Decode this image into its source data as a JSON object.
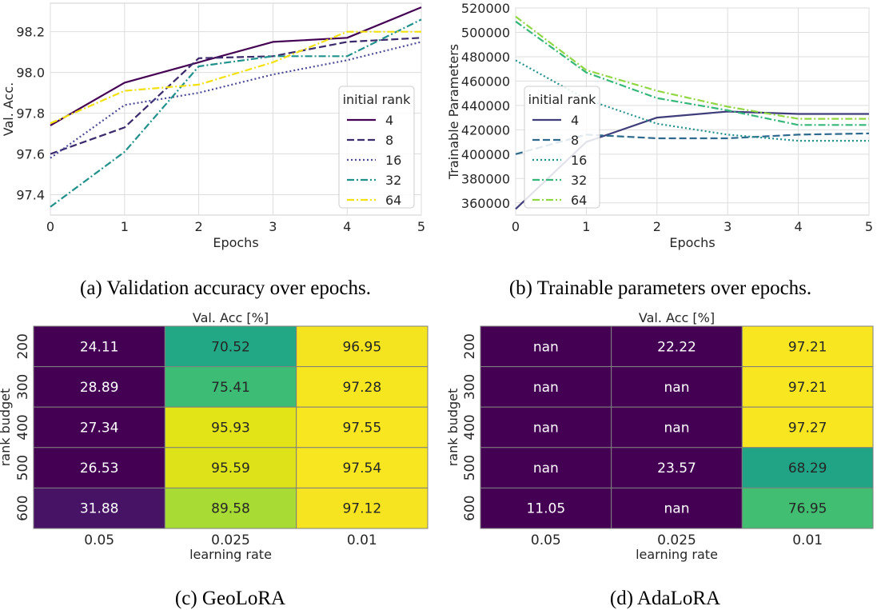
{
  "chart_data": [
    {
      "type": "line",
      "id": "a",
      "caption": "(a) Validation accuracy over epochs.",
      "xlabel": "Epochs",
      "ylabel": "Val. Acc.",
      "x": [
        0,
        1,
        2,
        3,
        4,
        5
      ],
      "xlim": [
        0,
        5
      ],
      "ylim": [
        97.3,
        98.34
      ],
      "xticks": [
        "0",
        "1",
        "2",
        "3",
        "4",
        "5"
      ],
      "yticks": [
        97.4,
        97.6,
        97.8,
        98.0,
        98.2
      ],
      "yticklabels": [
        "97.4",
        "97.6",
        "97.8",
        "98.0",
        "98.2"
      ],
      "legend_title": "initial rank",
      "legend_position": "lower-right",
      "grid": true,
      "series": [
        {
          "name": "4",
          "color": "#440154",
          "dash": "solid",
          "values": [
            97.74,
            97.95,
            98.05,
            98.15,
            98.17,
            98.32
          ]
        },
        {
          "name": "8",
          "color": "#3b2a6c",
          "dash": "dashed",
          "values": [
            97.6,
            97.73,
            98.07,
            98.08,
            98.15,
            98.17
          ]
        },
        {
          "name": "16",
          "color": "#4a4a98",
          "dash": "dotted",
          "values": [
            97.58,
            97.84,
            97.9,
            97.99,
            98.06,
            98.15
          ]
        },
        {
          "name": "32",
          "color": "#21918c",
          "dash": "dashdot",
          "values": [
            97.34,
            97.61,
            98.03,
            98.08,
            98.08,
            98.26
          ]
        },
        {
          "name": "64",
          "color": "#f2e10e",
          "dash": "dashdot",
          "values": [
            97.75,
            97.91,
            97.94,
            98.05,
            98.2,
            98.2
          ]
        }
      ]
    },
    {
      "type": "line",
      "id": "b",
      "caption": "(b) Trainable parameters over epochs.",
      "xlabel": "Epochs",
      "ylabel": "Trainable Parameters",
      "x": [
        0,
        1,
        2,
        3,
        4,
        5
      ],
      "xlim": [
        0,
        5
      ],
      "ylim": [
        350000,
        520000
      ],
      "xticks": [
        "0",
        "1",
        "2",
        "3",
        "4",
        "5"
      ],
      "yticks": [
        360000,
        380000,
        400000,
        420000,
        440000,
        460000,
        480000,
        500000,
        520000
      ],
      "yticklabels": [
        "360000",
        "380000",
        "400000",
        "420000",
        "440000",
        "460000",
        "480000",
        "500000",
        "520000"
      ],
      "legend_title": "initial rank",
      "legend_position": "lower-left",
      "grid": true,
      "series": [
        {
          "name": "4",
          "color": "#3f3d7a",
          "dash": "solid",
          "values": [
            355000,
            410000,
            430000,
            435000,
            433000,
            433000
          ]
        },
        {
          "name": "8",
          "color": "#2e6a8e",
          "dash": "dashed",
          "values": [
            400000,
            416000,
            413000,
            413000,
            416000,
            417000
          ]
        },
        {
          "name": "16",
          "color": "#21918c",
          "dash": "dotted",
          "values": [
            477000,
            445000,
            425000,
            416000,
            411000,
            411000
          ]
        },
        {
          "name": "32",
          "color": "#35b779",
          "dash": "dashdot",
          "values": [
            509000,
            467000,
            446000,
            436000,
            424000,
            424000
          ]
        },
        {
          "name": "64",
          "color": "#90d743",
          "dash": "dashdot",
          "values": [
            513000,
            469000,
            452000,
            439000,
            429000,
            429000
          ]
        }
      ]
    },
    {
      "type": "heatmap",
      "id": "c",
      "caption": "(c) GeoLoRA",
      "title": "Val. Acc [%]",
      "xlabel": "learning rate",
      "ylabel": "rank budget",
      "xticklabels": [
        "0.05",
        "0.025",
        "0.01"
      ],
      "yticklabels": [
        "200",
        "300",
        "400",
        "500",
        "600"
      ],
      "cells": [
        [
          {
            "text": "24.11",
            "value": 24.11,
            "color": "#440154"
          },
          {
            "text": "70.52",
            "value": 70.52,
            "color": "#22a884"
          },
          {
            "text": "96.95",
            "value": 96.95,
            "color": "#f4e31f"
          }
        ],
        [
          {
            "text": "28.89",
            "value": 28.89,
            "color": "#440154"
          },
          {
            "text": "75.41",
            "value": 75.41,
            "color": "#3cbc74"
          },
          {
            "text": "97.28",
            "value": 97.28,
            "color": "#f6e620"
          }
        ],
        [
          {
            "text": "27.34",
            "value": 27.34,
            "color": "#440154"
          },
          {
            "text": "95.93",
            "value": 95.93,
            "color": "#e2e418"
          },
          {
            "text": "97.55",
            "value": 97.55,
            "color": "#f8e621"
          }
        ],
        [
          {
            "text": "26.53",
            "value": 26.53,
            "color": "#440154"
          },
          {
            "text": "95.59",
            "value": 95.59,
            "color": "#dde318"
          },
          {
            "text": "97.54",
            "value": 97.54,
            "color": "#f8e621"
          }
        ],
        [
          {
            "text": "31.88",
            "value": 31.88,
            "color": "#471365"
          },
          {
            "text": "89.58",
            "value": 89.58,
            "color": "#a8db34"
          },
          {
            "text": "97.12",
            "value": 97.12,
            "color": "#f5e41f"
          }
        ]
      ]
    },
    {
      "type": "heatmap",
      "id": "d",
      "caption": "(d) AdaLoRA",
      "title": "Val. Acc [%]",
      "xlabel": "learning rate",
      "ylabel": "rank budget",
      "xticklabels": [
        "0.05",
        "0.025",
        "0.01"
      ],
      "yticklabels": [
        "200",
        "300",
        "400",
        "500",
        "600"
      ],
      "cells": [
        [
          {
            "text": "nan",
            "value": null,
            "color": "#440154"
          },
          {
            "text": "22.22",
            "value": 22.22,
            "color": "#440154"
          },
          {
            "text": "97.21",
            "value": 97.21,
            "color": "#f8e621"
          }
        ],
        [
          {
            "text": "nan",
            "value": null,
            "color": "#440154"
          },
          {
            "text": "nan",
            "value": null,
            "color": "#440154"
          },
          {
            "text": "97.21",
            "value": 97.21,
            "color": "#f8e621"
          }
        ],
        [
          {
            "text": "nan",
            "value": null,
            "color": "#440154"
          },
          {
            "text": "nan",
            "value": null,
            "color": "#440154"
          },
          {
            "text": "97.27",
            "value": 97.27,
            "color": "#f8e621"
          }
        ],
        [
          {
            "text": "nan",
            "value": null,
            "color": "#440154"
          },
          {
            "text": "23.57",
            "value": 23.57,
            "color": "#440154"
          },
          {
            "text": "68.29",
            "value": 68.29,
            "color": "#21a386"
          }
        ],
        [
          {
            "text": "11.05",
            "value": 11.05,
            "color": "#440154"
          },
          {
            "text": "nan",
            "value": null,
            "color": "#440154"
          },
          {
            "text": "76.95",
            "value": 76.95,
            "color": "#41be71"
          }
        ]
      ]
    }
  ]
}
